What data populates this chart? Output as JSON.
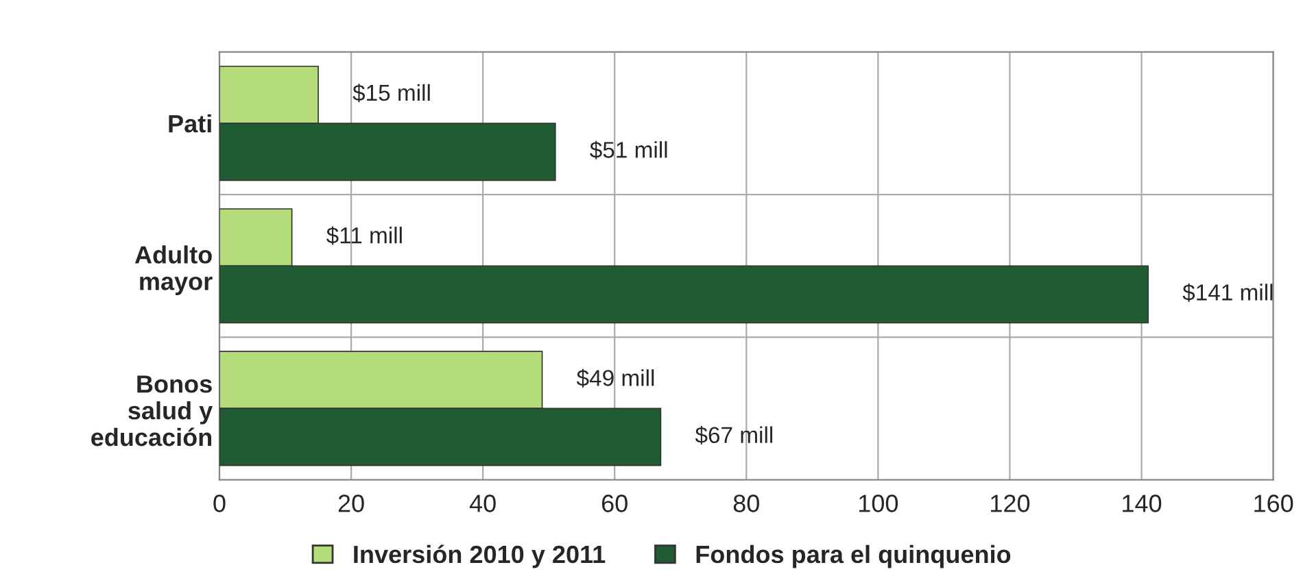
{
  "chart_data": {
    "type": "bar",
    "orientation": "horizontal",
    "categories": [
      "Pati",
      "Adulto\nmayor",
      "Bonos\nsalud y\neducación"
    ],
    "series": [
      {
        "name": "Inversión 2010 y 2011",
        "color": "#b5dc7a",
        "values": [
          15,
          11,
          49
        ],
        "value_labels": [
          "$15 mill",
          "$11 mill",
          "$49 mill"
        ]
      },
      {
        "name": "Fondos para el quinquenio",
        "color": "#1f5c34",
        "values": [
          51,
          141,
          67
        ],
        "value_labels": [
          "$51 mill",
          "$141 mill",
          "$67 mill"
        ]
      }
    ],
    "xlim": [
      0,
      160
    ],
    "xticks": [
      0,
      20,
      40,
      60,
      80,
      100,
      120,
      140,
      160
    ],
    "grid": "x",
    "legend": "bottom"
  }
}
